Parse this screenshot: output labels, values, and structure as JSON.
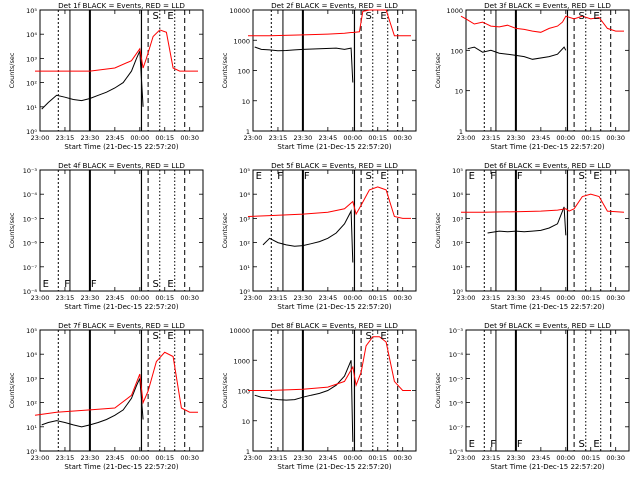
{
  "start_time_label": "Start Time (21-Dec-15 22:57:20)",
  "ylabel": "Counts/sec",
  "x_ticks": [
    "23:00",
    "23:15",
    "23:30",
    "23:45",
    "00:00",
    "00:15",
    "00:30"
  ],
  "colors": {
    "events": "#000000",
    "lld": "#ff0000",
    "axes": "#000000",
    "background": "#ffffff"
  },
  "markers": {
    "E": "E",
    "F": "F",
    "S": "S"
  },
  "chart_data": [
    {
      "type": "line",
      "title": "Det 1f BLACK = Events, RED = LLD",
      "y_scale": "log",
      "ylim": [
        1,
        100000
      ],
      "y_ticks": [
        "10⁰",
        "10¹",
        "10²",
        "10³",
        "10⁴",
        "10⁵"
      ],
      "markers_text": [
        {
          "label": "S",
          "pos": "top"
        },
        {
          "label": "E",
          "pos": "top"
        }
      ],
      "series": [
        {
          "name": "BLACK = Events",
          "color": "#000000",
          "x": [
            "23:01",
            "23:05",
            "23:10",
            "23:15",
            "23:20",
            "23:25",
            "23:30",
            "23:35",
            "23:40",
            "23:45",
            "23:50",
            "23:55",
            "23:58",
            "00:00",
            "00:02"
          ],
          "y": [
            8,
            15,
            30,
            25,
            20,
            18,
            22,
            30,
            40,
            60,
            100,
            300,
            1000,
            2000,
            10
          ]
        },
        {
          "name": "RED = LLD",
          "color": "#ff0000",
          "x": [
            "22:57",
            "23:10",
            "23:30",
            "23:45",
            "23:55",
            "00:00",
            "00:02",
            "00:04",
            "00:08",
            "00:12",
            "00:16",
            "00:20",
            "00:24",
            "00:30",
            "00:35"
          ],
          "y": [
            300,
            300,
            300,
            400,
            800,
            2500,
            400,
            1000,
            8000,
            15000,
            12000,
            400,
            300,
            300,
            300
          ]
        }
      ]
    },
    {
      "type": "line",
      "title": "Det 2f BLACK = Events, RED = LLD",
      "y_scale": "log",
      "ylim": [
        1,
        10000
      ],
      "y_ticks": [
        "1",
        "10",
        "100",
        "1000",
        "10000"
      ],
      "markers_text": [
        {
          "label": "S",
          "pos": "top"
        },
        {
          "label": "E",
          "pos": "top"
        }
      ],
      "series": [
        {
          "name": "BLACK = Events",
          "color": "#000000",
          "x": [
            "23:01",
            "23:05",
            "23:10",
            "23:15",
            "23:20",
            "23:25",
            "23:30",
            "23:40",
            "23:50",
            "23:55",
            "23:59",
            "00:00"
          ],
          "y": [
            600,
            500,
            480,
            450,
            460,
            480,
            500,
            520,
            550,
            500,
            550,
            40
          ]
        },
        {
          "name": "RED = LLD",
          "color": "#ff0000",
          "x": [
            "22:57",
            "23:10",
            "23:30",
            "23:45",
            "23:55",
            "23:59",
            "00:00",
            "00:04",
            "00:06",
            "00:10",
            "00:20",
            "00:25",
            "00:30",
            "00:35"
          ],
          "y": [
            1400,
            1400,
            1500,
            1600,
            1700,
            1800,
            1800,
            1900,
            9000,
            15000,
            15000,
            1400,
            1400,
            1400
          ]
        }
      ]
    },
    {
      "type": "line",
      "title": "Det 3f BLACK = Events, RED = LLD",
      "y_scale": "log",
      "ylim": [
        1,
        1000
      ],
      "y_ticks": [
        "1",
        "10",
        "100",
        "1000"
      ],
      "markers_text": [
        {
          "label": "S",
          "pos": "top"
        },
        {
          "label": "E",
          "pos": "top"
        }
      ],
      "series": [
        {
          "name": "BLACK = Events",
          "color": "#000000",
          "x": [
            "23:01",
            "23:05",
            "23:10",
            "23:15",
            "23:20",
            "23:25",
            "23:30",
            "23:35",
            "23:40",
            "23:50",
            "23:55",
            "23:59",
            "00:00"
          ],
          "y": [
            110,
            120,
            90,
            100,
            85,
            80,
            75,
            70,
            60,
            70,
            80,
            120,
            100
          ]
        },
        {
          "name": "RED = LLD",
          "color": "#ff0000",
          "x": [
            "22:57",
            "23:00",
            "23:05",
            "23:10",
            "23:15",
            "23:20",
            "23:25",
            "23:30",
            "23:35",
            "23:40",
            "23:45",
            "23:50",
            "23:55",
            "23:58",
            "00:00",
            "00:05",
            "00:10",
            "00:15",
            "00:20",
            "00:25",
            "00:30",
            "00:35"
          ],
          "y": [
            700,
            600,
            450,
            500,
            400,
            380,
            420,
            350,
            330,
            300,
            280,
            350,
            400,
            500,
            700,
            600,
            700,
            600,
            650,
            350,
            300,
            300
          ]
        }
      ]
    },
    {
      "type": "line",
      "title": "Det 4f BLACK = Events, RED = LLD",
      "y_scale": "log",
      "ylim": [
        1e-08,
        0.001
      ],
      "y_ticks": [
        "10⁻⁸",
        "10⁻⁷",
        "10⁻⁶",
        "10⁻⁵",
        "10⁻⁴",
        "10⁻³"
      ],
      "markers_text": [
        {
          "label": "E",
          "pos": "bottom"
        },
        {
          "label": "F",
          "pos": "bottom"
        },
        {
          "label": "F",
          "pos": "bottom"
        },
        {
          "label": "S",
          "pos": "bottom"
        },
        {
          "label": "E",
          "pos": "bottom"
        }
      ],
      "series": []
    },
    {
      "type": "line",
      "title": "Det 5f BLACK = Events, RED = LLD",
      "y_scale": "log",
      "ylim": [
        1,
        100000
      ],
      "y_ticks": [
        "10⁰",
        "10¹",
        "10²",
        "10³",
        "10⁴",
        "10⁵"
      ],
      "markers_text": [
        {
          "label": "E",
          "pos": "top"
        },
        {
          "label": "F",
          "pos": "top"
        },
        {
          "label": "F",
          "pos": "top"
        },
        {
          "label": "S",
          "pos": "top"
        },
        {
          "label": "E",
          "pos": "top"
        }
      ],
      "series": [
        {
          "name": "BLACK = Events",
          "color": "#000000",
          "x": [
            "23:06",
            "23:10",
            "23:15",
            "23:20",
            "23:25",
            "23:30",
            "23:35",
            "23:40",
            "23:45",
            "23:50",
            "23:55",
            "23:59",
            "00:00"
          ],
          "y": [
            80,
            150,
            100,
            80,
            70,
            75,
            90,
            110,
            150,
            250,
            600,
            2000,
            15
          ]
        },
        {
          "name": "RED = LLD",
          "color": "#ff0000",
          "x": [
            "22:57",
            "23:10",
            "23:30",
            "23:45",
            "23:55",
            "00:00",
            "00:02",
            "00:05",
            "00:10",
            "00:15",
            "00:20",
            "00:25",
            "00:30",
            "00:35"
          ],
          "y": [
            1200,
            1300,
            1500,
            1800,
            2500,
            5000,
            1500,
            3500,
            15000,
            20000,
            15000,
            1200,
            1000,
            1000
          ]
        }
      ]
    },
    {
      "type": "line",
      "title": "Det 6f BLACK = Events, RED = LLD",
      "y_scale": "log",
      "ylim": [
        1,
        100000
      ],
      "y_ticks": [
        "10⁰",
        "10¹",
        "10²",
        "10³",
        "10⁴",
        "10⁵"
      ],
      "markers_text": [
        {
          "label": "E",
          "pos": "top"
        },
        {
          "label": "F",
          "pos": "top"
        },
        {
          "label": "F",
          "pos": "top"
        },
        {
          "label": "S",
          "pos": "top"
        },
        {
          "label": "E",
          "pos": "top"
        }
      ],
      "series": [
        {
          "name": "BLACK = Events",
          "color": "#000000",
          "x": [
            "23:13",
            "23:20",
            "23:25",
            "23:30",
            "23:35",
            "23:40",
            "23:45",
            "23:50",
            "23:55",
            "23:59",
            "00:00"
          ],
          "y": [
            250,
            300,
            280,
            300,
            280,
            300,
            320,
            400,
            600,
            3000,
            200
          ]
        },
        {
          "name": "RED = LLD",
          "color": "#ff0000",
          "x": [
            "22:57",
            "23:10",
            "23:30",
            "23:45",
            "23:55",
            "00:00",
            "00:02",
            "00:05",
            "00:10",
            "00:15",
            "00:20",
            "00:25",
            "00:35"
          ],
          "y": [
            1800,
            1800,
            1900,
            2000,
            2200,
            2500,
            2000,
            2500,
            8000,
            10000,
            8000,
            2000,
            1800
          ]
        }
      ]
    },
    {
      "type": "line",
      "title": "Det 7f BLACK = Events, RED = LLD",
      "y_scale": "log",
      "ylim": [
        1,
        100000
      ],
      "y_ticks": [
        "10⁰",
        "10¹",
        "10²",
        "10³",
        "10⁴",
        "10⁵"
      ],
      "markers_text": [
        {
          "label": "S",
          "pos": "top"
        },
        {
          "label": "E",
          "pos": "top"
        }
      ],
      "series": [
        {
          "name": "BLACK = Events",
          "color": "#000000",
          "x": [
            "23:01",
            "23:05",
            "23:10",
            "23:15",
            "23:20",
            "23:25",
            "23:30",
            "23:35",
            "23:40",
            "23:45",
            "23:50",
            "23:55",
            "23:58",
            "00:00",
            "00:02"
          ],
          "y": [
            12,
            15,
            18,
            15,
            12,
            10,
            12,
            15,
            20,
            30,
            50,
            150,
            500,
            1000,
            20
          ]
        },
        {
          "name": "RED = LLD",
          "color": "#ff0000",
          "x": [
            "22:57",
            "23:10",
            "23:30",
            "23:45",
            "23:55",
            "00:00",
            "00:02",
            "00:05",
            "00:10",
            "00:15",
            "00:20",
            "00:25",
            "00:30",
            "00:35"
          ],
          "y": [
            30,
            40,
            50,
            60,
            200,
            1500,
            100,
            300,
            5000,
            12000,
            8000,
            60,
            40,
            40
          ]
        }
      ]
    },
    {
      "type": "line",
      "title": "Det 8f BLACK = Events, RED = LLD",
      "y_scale": "log",
      "ylim": [
        1,
        10000
      ],
      "y_ticks": [
        "1",
        "10",
        "100",
        "1000",
        "10000"
      ],
      "markers_text": [
        {
          "label": "S",
          "pos": "top"
        },
        {
          "label": "E",
          "pos": "top"
        }
      ],
      "series": [
        {
          "name": "BLACK = Events",
          "color": "#000000",
          "x": [
            "23:01",
            "23:05",
            "23:10",
            "23:15",
            "23:20",
            "23:25",
            "23:30",
            "23:35",
            "23:40",
            "23:45",
            "23:50",
            "23:55",
            "23:59",
            "00:00"
          ],
          "y": [
            70,
            60,
            55,
            50,
            48,
            50,
            60,
            70,
            80,
            100,
            150,
            300,
            1000,
            2
          ]
        },
        {
          "name": "RED = LLD",
          "color": "#ff0000",
          "x": [
            "22:57",
            "23:10",
            "23:30",
            "23:45",
            "23:55",
            "00:00",
            "00:02",
            "00:05",
            "00:08",
            "00:12",
            "00:16",
            "00:20",
            "00:25",
            "00:30",
            "00:35"
          ],
          "y": [
            100,
            100,
            110,
            130,
            200,
            600,
            150,
            400,
            3000,
            6000,
            6000,
            4000,
            200,
            100,
            100
          ]
        }
      ]
    },
    {
      "type": "line",
      "title": "Det 9f BLACK = Events, RED = LLD",
      "y_scale": "log",
      "ylim": [
        1e-08,
        0.001
      ],
      "y_ticks": [
        "10⁻⁸",
        "10⁻⁷",
        "10⁻⁶",
        "10⁻⁵",
        "10⁻⁴",
        "10⁻³"
      ],
      "markers_text": [
        {
          "label": "E",
          "pos": "bottom"
        },
        {
          "label": "F",
          "pos": "bottom"
        },
        {
          "label": "F",
          "pos": "bottom"
        },
        {
          "label": "S",
          "pos": "bottom"
        },
        {
          "label": "E",
          "pos": "bottom"
        }
      ],
      "series": []
    }
  ]
}
